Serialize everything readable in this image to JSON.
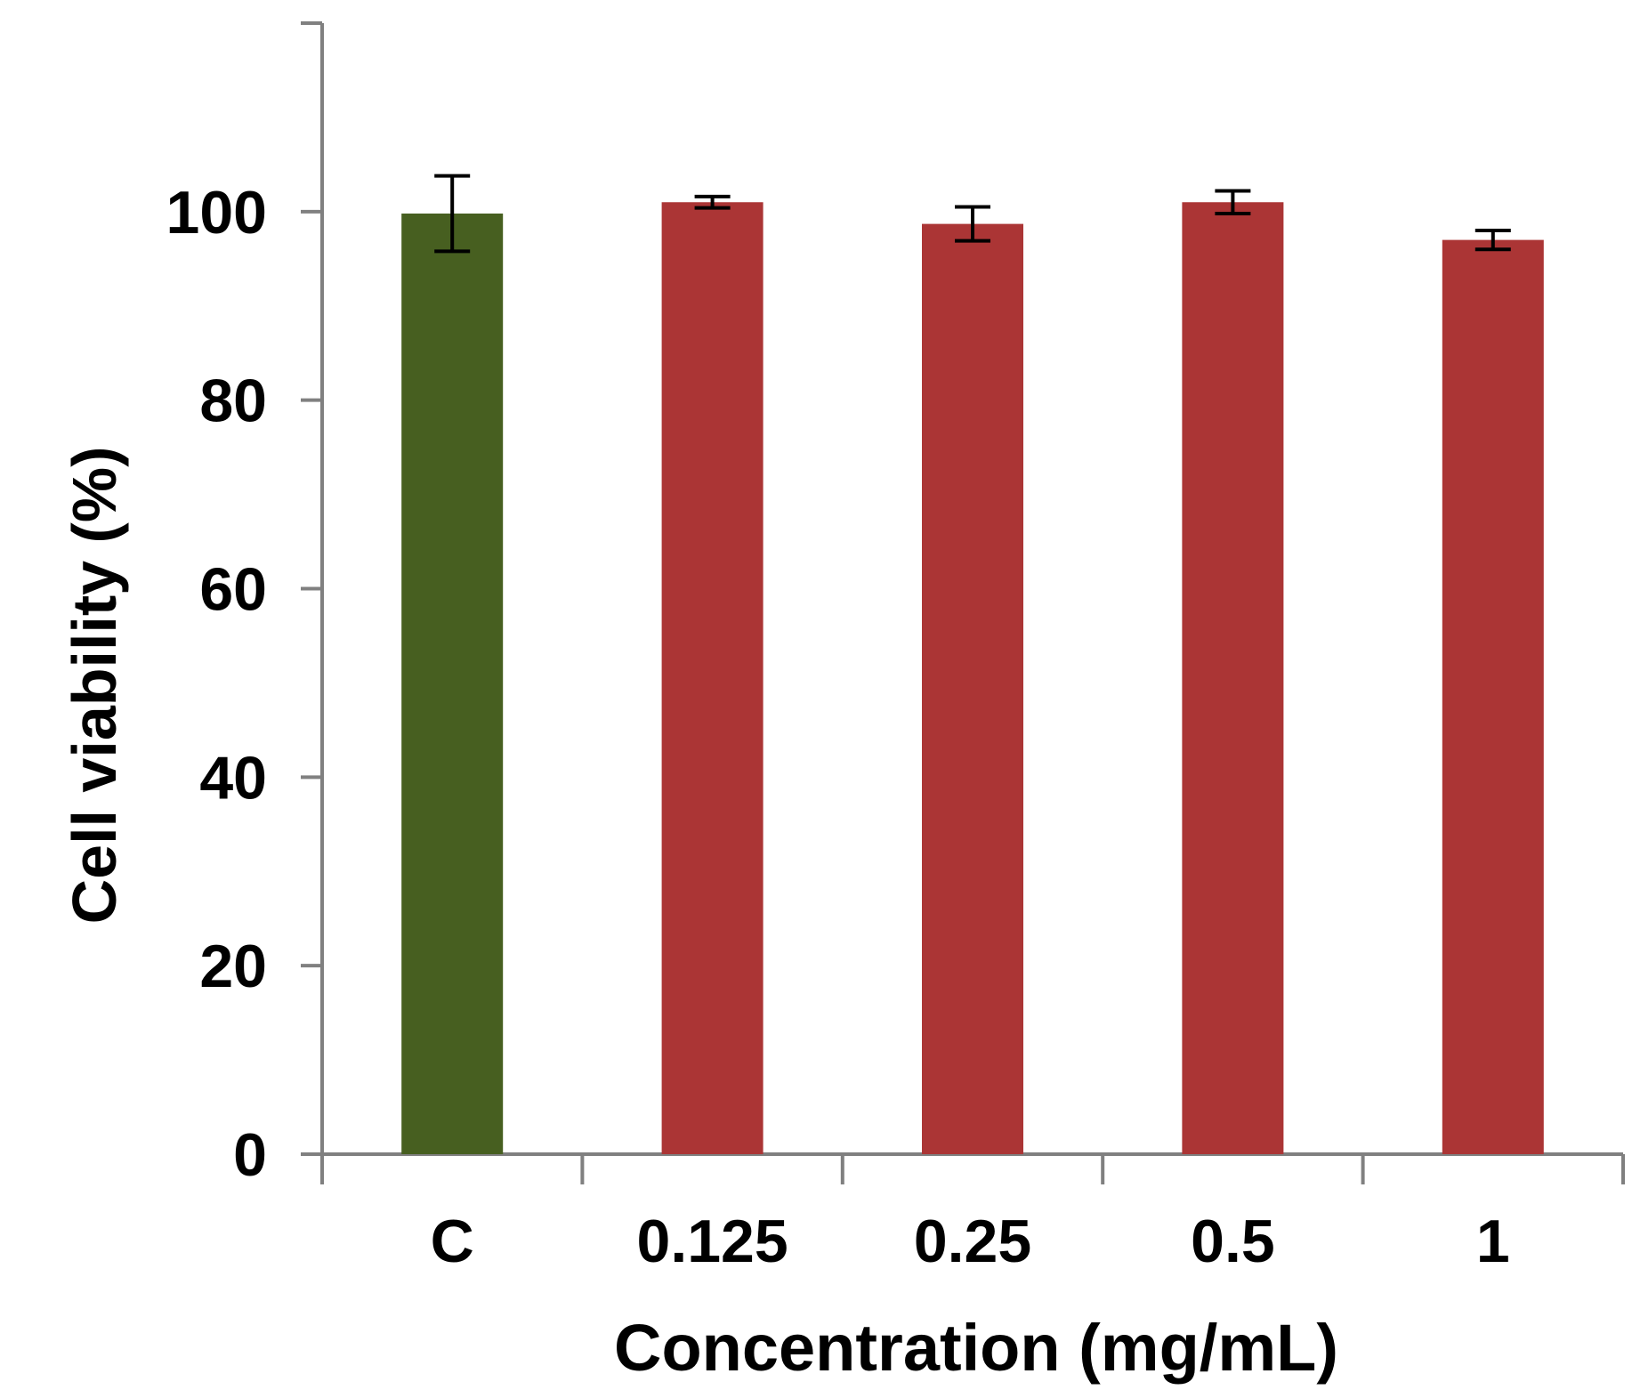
{
  "chart_data": {
    "type": "bar",
    "title": "",
    "xlabel": "Concentration (mg/mL)",
    "ylabel": "Cell viability (%)",
    "categories": [
      "C",
      "0.125",
      "0.25",
      "0.5",
      "1"
    ],
    "values": [
      99.8,
      101.0,
      98.7,
      101.0,
      97.0
    ],
    "errors": [
      4.0,
      0.6,
      1.8,
      1.2,
      1.0
    ],
    "bar_colors": [
      "#475f20",
      "#ab3535",
      "#ab3535",
      "#ab3535",
      "#ab3535"
    ],
    "ylim": [
      0,
      120
    ],
    "yticks": [
      0,
      20,
      40,
      60,
      80,
      100
    ],
    "ytick_labels": [
      "0",
      "20",
      "40",
      "60",
      "80",
      "100"
    ],
    "grid": false,
    "legend": "none",
    "axis_color": "#808080",
    "error_bar_color": "#000000"
  }
}
